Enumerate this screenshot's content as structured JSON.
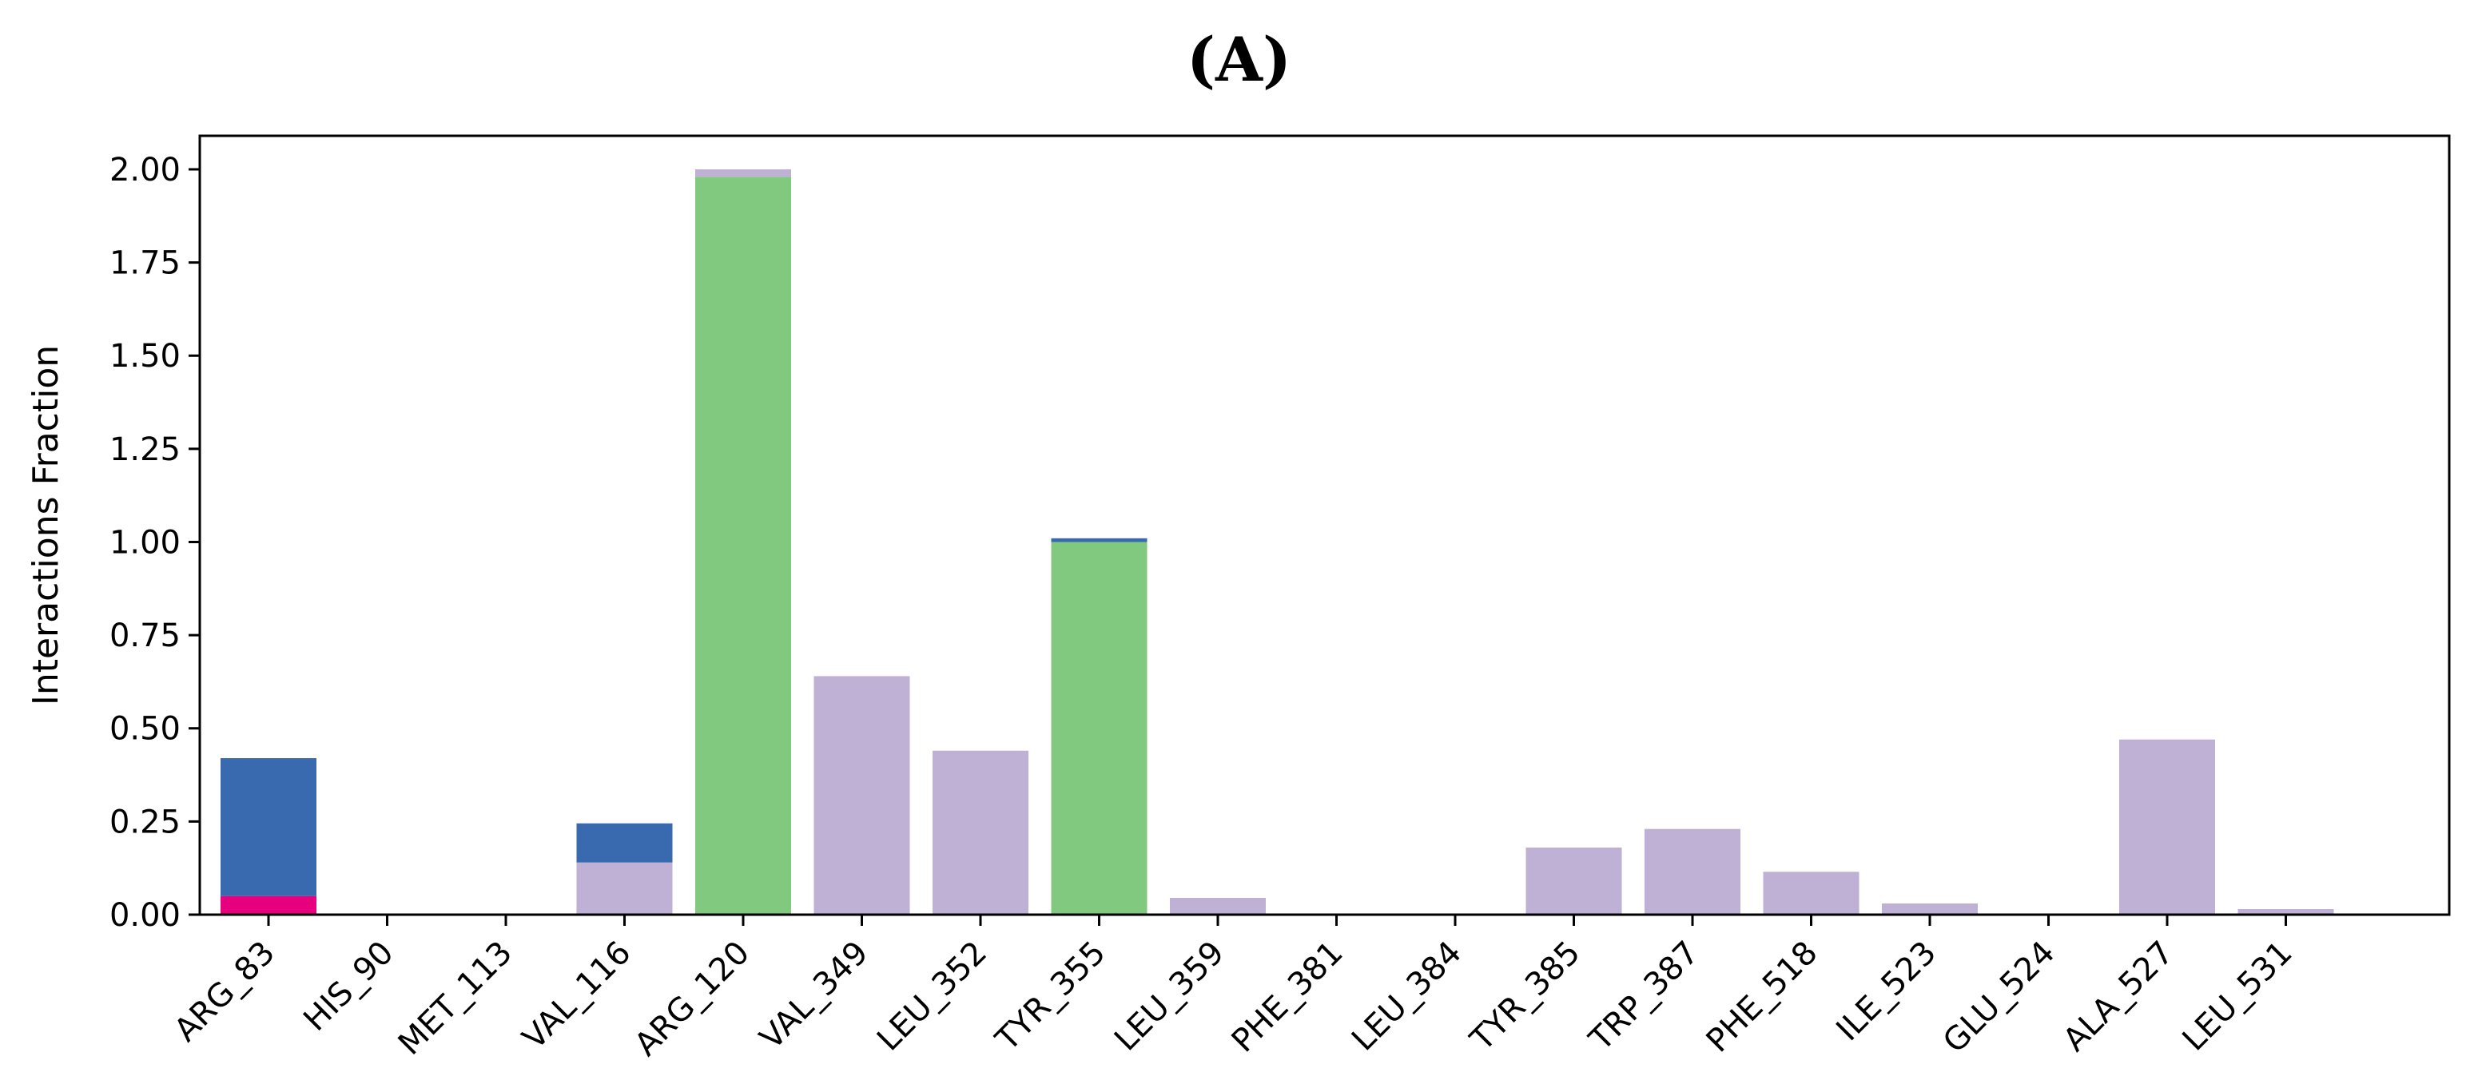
{
  "panel_label": "(A)",
  "chart_data": {
    "type": "bar",
    "stacked": true,
    "title": "",
    "xlabel": "",
    "ylabel": "Interactions Fraction",
    "ylim": [
      0,
      2.09
    ],
    "yticks": [
      "0.00",
      "0.25",
      "0.50",
      "0.75",
      "1.00",
      "1.25",
      "1.50",
      "1.75",
      "2.00"
    ],
    "categories": [
      "ARG_83",
      "HIS_90",
      "MET_113",
      "VAL_116",
      "ARG_120",
      "VAL_349",
      "LEU_352",
      "TYR_355",
      "LEU_359",
      "PHE_381",
      "LEU_384",
      "TYR_385",
      "TRP_387",
      "PHE_518",
      "ILE_523",
      "GLU_524",
      "ALA_527",
      "LEU_531"
    ],
    "series": [
      {
        "color": "#e6007e",
        "values": [
          0.05,
          0,
          0,
          0,
          0,
          0,
          0,
          0,
          0,
          0,
          0,
          0,
          0,
          0,
          0,
          0,
          0,
          0
        ]
      },
      {
        "color": "#80c97e",
        "values": [
          0,
          0,
          0,
          0,
          1.98,
          0,
          0,
          1.0,
          0,
          0,
          0,
          0,
          0,
          0,
          0,
          0,
          0,
          0
        ]
      },
      {
        "color": "#bfb0d5",
        "values": [
          0,
          0,
          0,
          0.14,
          0.02,
          0.64,
          0.44,
          0,
          0.045,
          0,
          0,
          0.18,
          0.23,
          0.115,
          0.03,
          0,
          0.47,
          0.015
        ]
      },
      {
        "color": "#396aaf",
        "values": [
          0.37,
          0,
          0,
          0.105,
          0,
          0,
          0,
          0.01,
          0,
          0,
          0,
          0,
          0,
          0,
          0,
          0,
          0,
          0
        ]
      }
    ],
    "grid": false,
    "legend": "none"
  }
}
